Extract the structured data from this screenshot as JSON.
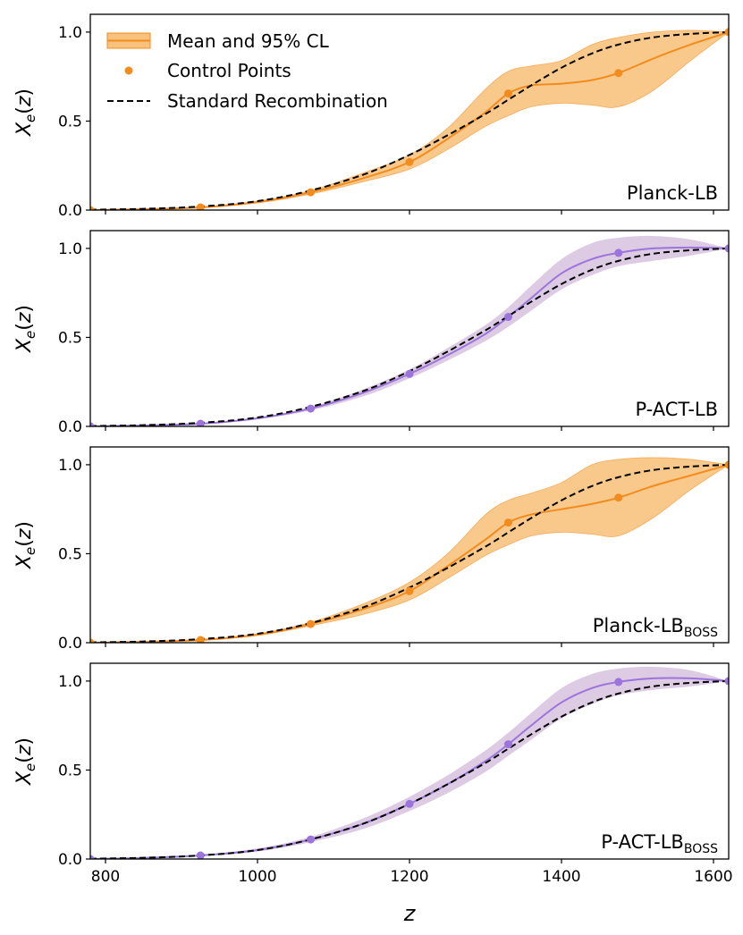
{
  "colors": {
    "orange": "#f28c1e",
    "orange_band": "#f8c27e",
    "purple": "#9b74dc",
    "purple_band": "#d7c2df",
    "dashed": "#000000"
  },
  "legend": {
    "band_label": "Mean and 95% CL",
    "points_label": "Control Points",
    "dashed_label": "Standard Recombination"
  },
  "xaxis": {
    "label": "z",
    "ticks": [
      800,
      1000,
      1200,
      1400,
      1600
    ],
    "tick_labels": [
      "800",
      "1000",
      "1200",
      "1400",
      "1600"
    ],
    "range": [
      780,
      1620
    ]
  },
  "yaxis": {
    "label_main": "X",
    "label_sub": "e",
    "label_tail": "(z)",
    "ticks": [
      0.0,
      0.5,
      1.0
    ],
    "tick_labels": [
      "0.0",
      "0.5",
      "1.0"
    ],
    "range": [
      0,
      1.1
    ]
  },
  "chart_data": [
    {
      "type": "line",
      "panel_label": "Planck-LB",
      "panel_label_sub": "",
      "color": "orange",
      "control_points": {
        "x": [
          780,
          925,
          1070,
          1200,
          1330,
          1475,
          1620
        ],
        "y": [
          0.0,
          0.015,
          0.1,
          0.27,
          0.655,
          0.77,
          1.0
        ]
      },
      "mean": {
        "x": [
          780,
          850,
          925,
          1000,
          1070,
          1140,
          1200,
          1250,
          1300,
          1330,
          1360,
          1400,
          1440,
          1475,
          1520,
          1570,
          1620
        ],
        "y": [
          0.0,
          0.005,
          0.015,
          0.045,
          0.1,
          0.18,
          0.27,
          0.4,
          0.55,
          0.655,
          0.7,
          0.71,
          0.73,
          0.77,
          0.85,
          0.93,
          1.0
        ]
      },
      "band_upper": [
        0.002,
        0.007,
        0.018,
        0.05,
        0.11,
        0.21,
        0.31,
        0.46,
        0.68,
        0.78,
        0.81,
        0.84,
        0.93,
        0.97,
        1.0,
        1.01,
        1.0
      ],
      "band_lower": [
        0.0,
        0.003,
        0.012,
        0.04,
        0.09,
        0.16,
        0.23,
        0.34,
        0.47,
        0.53,
        0.58,
        0.6,
        0.59,
        0.58,
        0.67,
        0.84,
        1.0
      ],
      "standard": {
        "x": [
          780,
          850,
          925,
          1000,
          1070,
          1140,
          1200,
          1250,
          1300,
          1330,
          1360,
          1400,
          1440,
          1475,
          1520,
          1570,
          1620
        ],
        "y": [
          0.002,
          0.007,
          0.02,
          0.05,
          0.11,
          0.2,
          0.31,
          0.42,
          0.54,
          0.62,
          0.7,
          0.8,
          0.88,
          0.93,
          0.97,
          0.99,
          1.0
        ]
      }
    },
    {
      "type": "line",
      "panel_label": "P-ACT-LB",
      "panel_label_sub": "",
      "color": "purple",
      "control_points": {
        "x": [
          780,
          925,
          1070,
          1200,
          1330,
          1475,
          1620
        ],
        "y": [
          0.0,
          0.015,
          0.1,
          0.295,
          0.615,
          0.975,
          1.0
        ]
      },
      "mean": {
        "x": [
          780,
          850,
          925,
          1000,
          1070,
          1140,
          1200,
          1250,
          1300,
          1330,
          1360,
          1400,
          1440,
          1475,
          1520,
          1570,
          1620
        ],
        "y": [
          0.0,
          0.005,
          0.015,
          0.045,
          0.1,
          0.19,
          0.295,
          0.4,
          0.52,
          0.615,
          0.72,
          0.86,
          0.94,
          0.975,
          1.0,
          1.005,
          1.0
        ]
      },
      "band_upper": [
        0.002,
        0.007,
        0.018,
        0.05,
        0.11,
        0.21,
        0.32,
        0.44,
        0.57,
        0.67,
        0.79,
        0.94,
        1.03,
        1.06,
        1.07,
        1.05,
        1.0
      ],
      "band_lower": [
        0.0,
        0.003,
        0.012,
        0.04,
        0.09,
        0.17,
        0.27,
        0.37,
        0.48,
        0.56,
        0.65,
        0.77,
        0.85,
        0.9,
        0.93,
        0.96,
        1.0
      ]
    },
    {
      "type": "line",
      "panel_label": "Planck-LB",
      "panel_label_sub": "BOSS",
      "color": "orange",
      "control_points": {
        "x": [
          780,
          925,
          1070,
          1200,
          1330,
          1475,
          1620
        ],
        "y": [
          0.0,
          0.015,
          0.105,
          0.29,
          0.675,
          0.815,
          1.0
        ]
      },
      "mean": {
        "x": [
          780,
          850,
          925,
          1000,
          1070,
          1140,
          1200,
          1250,
          1300,
          1330,
          1360,
          1400,
          1440,
          1475,
          1520,
          1570,
          1620
        ],
        "y": [
          0.0,
          0.005,
          0.015,
          0.045,
          0.105,
          0.19,
          0.29,
          0.43,
          0.58,
          0.675,
          0.72,
          0.75,
          0.78,
          0.815,
          0.88,
          0.94,
          1.0
        ]
      },
      "band_upper": [
        0.002,
        0.007,
        0.018,
        0.05,
        0.115,
        0.22,
        0.34,
        0.5,
        0.72,
        0.8,
        0.84,
        0.9,
        1.0,
        1.03,
        1.04,
        1.03,
        1.0
      ],
      "band_lower": [
        0.0,
        0.003,
        0.012,
        0.04,
        0.095,
        0.16,
        0.24,
        0.36,
        0.49,
        0.55,
        0.6,
        0.62,
        0.61,
        0.6,
        0.7,
        0.86,
        1.0
      ]
    },
    {
      "type": "line",
      "panel_label": "P-ACT-LB",
      "panel_label_sub": "BOSS",
      "color": "purple",
      "control_points": {
        "x": [
          780,
          925,
          1070,
          1200,
          1330,
          1475,
          1620
        ],
        "y": [
          0.0,
          0.02,
          0.11,
          0.31,
          0.645,
          0.995,
          1.0
        ]
      },
      "mean": {
        "x": [
          780,
          850,
          925,
          1000,
          1070,
          1140,
          1200,
          1250,
          1300,
          1330,
          1360,
          1400,
          1440,
          1475,
          1520,
          1570,
          1620
        ],
        "y": [
          0.0,
          0.006,
          0.02,
          0.05,
          0.11,
          0.2,
          0.31,
          0.42,
          0.55,
          0.645,
          0.75,
          0.88,
          0.96,
          0.995,
          1.015,
          1.015,
          1.0
        ]
      },
      "band_upper": [
        0.002,
        0.008,
        0.024,
        0.06,
        0.125,
        0.23,
        0.35,
        0.47,
        0.61,
        0.71,
        0.82,
        0.96,
        1.04,
        1.07,
        1.08,
        1.06,
        1.0
      ],
      "band_lower": [
        0.0,
        0.004,
        0.016,
        0.042,
        0.095,
        0.17,
        0.27,
        0.37,
        0.49,
        0.58,
        0.67,
        0.79,
        0.87,
        0.92,
        0.95,
        0.97,
        1.0
      ]
    }
  ]
}
